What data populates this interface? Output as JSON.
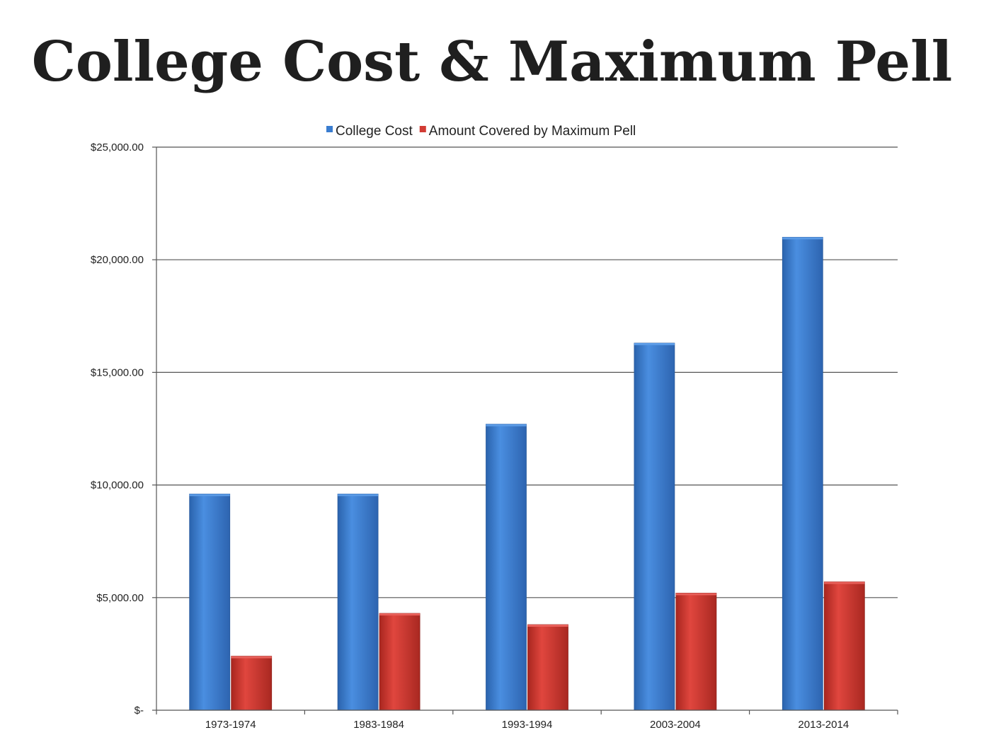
{
  "title": "College Cost & Maximum Pell",
  "colors": {
    "college_cost": "#3a7dd0",
    "pell": "#d23b34",
    "grid": "#555555",
    "text": "#222222"
  },
  "chart_data": {
    "type": "bar",
    "title": "College Cost & Maximum Pell",
    "xlabel": "",
    "ylabel": "",
    "categories": [
      "1973-1974",
      "1983-1984",
      "1993-1994",
      "2003-2004",
      "2013-2014"
    ],
    "series": [
      {
        "name": "College Cost",
        "values": [
          9600,
          9600,
          12700,
          16300,
          21000
        ]
      },
      {
        "name": "Amount Covered by Maximum Pell",
        "values": [
          2400,
          4300,
          3800,
          5200,
          5700
        ]
      }
    ],
    "ylim": [
      0,
      25000
    ],
    "yticks": [
      0,
      5000,
      10000,
      15000,
      20000,
      25000
    ],
    "ytick_labels": [
      "$-",
      "$5,000.00",
      "$10,000.00",
      "$15,000.00",
      "$20,000.00",
      "$25,000.00"
    ],
    "grid": true,
    "legend_position": "top-center"
  }
}
